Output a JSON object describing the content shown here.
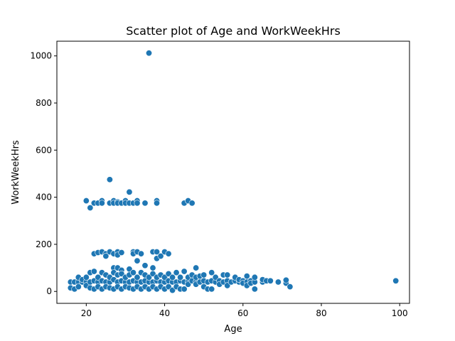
{
  "chart_data": {
    "type": "scatter",
    "title": "Scatter plot of Age and WorkWeekHrs",
    "xlabel": "Age",
    "ylabel": "WorkWeekHrs",
    "xlim": [
      12.5,
      102.5
    ],
    "ylim": [
      -50.6,
      1062.4
    ],
    "xticks": [
      20,
      40,
      60,
      80,
      100
    ],
    "yticks": [
      0,
      200,
      400,
      600,
      800,
      1000
    ],
    "grid": false,
    "marker_color": "#1f77b4",
    "marker_edge": "#ffffff",
    "points": [
      {
        "x": 36,
        "y": 1012
      },
      {
        "x": 26,
        "y": 475
      },
      {
        "x": 31,
        "y": 422
      },
      {
        "x": 20,
        "y": 385
      },
      {
        "x": 21,
        "y": 355
      },
      {
        "x": 22,
        "y": 375
      },
      {
        "x": 23,
        "y": 375
      },
      {
        "x": 24,
        "y": 385
      },
      {
        "x": 24,
        "y": 375
      },
      {
        "x": 26,
        "y": 375
      },
      {
        "x": 27,
        "y": 385
      },
      {
        "x": 27,
        "y": 375
      },
      {
        "x": 28,
        "y": 380
      },
      {
        "x": 28,
        "y": 375
      },
      {
        "x": 29,
        "y": 375
      },
      {
        "x": 30,
        "y": 385
      },
      {
        "x": 30,
        "y": 375
      },
      {
        "x": 31,
        "y": 375
      },
      {
        "x": 32,
        "y": 375
      },
      {
        "x": 33,
        "y": 385
      },
      {
        "x": 33,
        "y": 375
      },
      {
        "x": 35,
        "y": 375
      },
      {
        "x": 38,
        "y": 385
      },
      {
        "x": 38,
        "y": 375
      },
      {
        "x": 45,
        "y": 375
      },
      {
        "x": 46,
        "y": 385
      },
      {
        "x": 47,
        "y": 375
      },
      {
        "x": 22,
        "y": 160
      },
      {
        "x": 23,
        "y": 165
      },
      {
        "x": 24,
        "y": 168
      },
      {
        "x": 25,
        "y": 160
      },
      {
        "x": 25,
        "y": 150
      },
      {
        "x": 26,
        "y": 168
      },
      {
        "x": 27,
        "y": 160
      },
      {
        "x": 28,
        "y": 168
      },
      {
        "x": 28,
        "y": 155
      },
      {
        "x": 29,
        "y": 165
      },
      {
        "x": 32,
        "y": 168
      },
      {
        "x": 32,
        "y": 160
      },
      {
        "x": 33,
        "y": 168
      },
      {
        "x": 33,
        "y": 130
      },
      {
        "x": 34,
        "y": 160
      },
      {
        "x": 37,
        "y": 168
      },
      {
        "x": 38,
        "y": 168
      },
      {
        "x": 38,
        "y": 140
      },
      {
        "x": 39,
        "y": 150
      },
      {
        "x": 40,
        "y": 168
      },
      {
        "x": 41,
        "y": 160
      },
      {
        "x": 27,
        "y": 100
      },
      {
        "x": 28,
        "y": 100
      },
      {
        "x": 29,
        "y": 90
      },
      {
        "x": 31,
        "y": 95
      },
      {
        "x": 35,
        "y": 110
      },
      {
        "x": 37,
        "y": 100
      },
      {
        "x": 48,
        "y": 100
      },
      {
        "x": 16,
        "y": 40
      },
      {
        "x": 16,
        "y": 15
      },
      {
        "x": 17,
        "y": 40
      },
      {
        "x": 17,
        "y": 10
      },
      {
        "x": 18,
        "y": 40
      },
      {
        "x": 18,
        "y": 20
      },
      {
        "x": 18,
        "y": 60
      },
      {
        "x": 19,
        "y": 40
      },
      {
        "x": 19,
        "y": 50
      },
      {
        "x": 20,
        "y": 40
      },
      {
        "x": 20,
        "y": 60
      },
      {
        "x": 20,
        "y": 25
      },
      {
        "x": 21,
        "y": 40
      },
      {
        "x": 21,
        "y": 80
      },
      {
        "x": 21,
        "y": 15
      },
      {
        "x": 22,
        "y": 45
      },
      {
        "x": 22,
        "y": 85
      },
      {
        "x": 22,
        "y": 10
      },
      {
        "x": 23,
        "y": 40
      },
      {
        "x": 23,
        "y": 60
      },
      {
        "x": 23,
        "y": 20
      },
      {
        "x": 24,
        "y": 45
      },
      {
        "x": 24,
        "y": 80
      },
      {
        "x": 24,
        "y": 10
      },
      {
        "x": 25,
        "y": 40
      },
      {
        "x": 25,
        "y": 70
      },
      {
        "x": 25,
        "y": 20
      },
      {
        "x": 26,
        "y": 40
      },
      {
        "x": 26,
        "y": 60
      },
      {
        "x": 26,
        "y": 15
      },
      {
        "x": 27,
        "y": 50
      },
      {
        "x": 27,
        "y": 80
      },
      {
        "x": 27,
        "y": 10
      },
      {
        "x": 28,
        "y": 40
      },
      {
        "x": 28,
        "y": 70
      },
      {
        "x": 28,
        "y": 20
      },
      {
        "x": 29,
        "y": 45
      },
      {
        "x": 29,
        "y": 75
      },
      {
        "x": 29,
        "y": 10
      },
      {
        "x": 30,
        "y": 40
      },
      {
        "x": 30,
        "y": 60
      },
      {
        "x": 30,
        "y": 20
      },
      {
        "x": 31,
        "y": 40
      },
      {
        "x": 31,
        "y": 70
      },
      {
        "x": 31,
        "y": 15
      },
      {
        "x": 32,
        "y": 45
      },
      {
        "x": 32,
        "y": 80
      },
      {
        "x": 32,
        "y": 10
      },
      {
        "x": 33,
        "y": 40
      },
      {
        "x": 33,
        "y": 60
      },
      {
        "x": 33,
        "y": 20
      },
      {
        "x": 34,
        "y": 40
      },
      {
        "x": 34,
        "y": 80
      },
      {
        "x": 34,
        "y": 10
      },
      {
        "x": 35,
        "y": 45
      },
      {
        "x": 35,
        "y": 70
      },
      {
        "x": 35,
        "y": 20
      },
      {
        "x": 36,
        "y": 40
      },
      {
        "x": 36,
        "y": 60
      },
      {
        "x": 36,
        "y": 10
      },
      {
        "x": 37,
        "y": 40
      },
      {
        "x": 37,
        "y": 75
      },
      {
        "x": 37,
        "y": 20
      },
      {
        "x": 38,
        "y": 45
      },
      {
        "x": 38,
        "y": 60
      },
      {
        "x": 38,
        "y": 10
      },
      {
        "x": 39,
        "y": 40
      },
      {
        "x": 39,
        "y": 70
      },
      {
        "x": 39,
        "y": 20
      },
      {
        "x": 40,
        "y": 40
      },
      {
        "x": 40,
        "y": 60
      },
      {
        "x": 40,
        "y": 10
      },
      {
        "x": 41,
        "y": 45
      },
      {
        "x": 41,
        "y": 75
      },
      {
        "x": 41,
        "y": 20
      },
      {
        "x": 42,
        "y": 40
      },
      {
        "x": 42,
        "y": 60
      },
      {
        "x": 42,
        "y": 5
      },
      {
        "x": 43,
        "y": 40
      },
      {
        "x": 43,
        "y": 80
      },
      {
        "x": 43,
        "y": 20
      },
      {
        "x": 44,
        "y": 45
      },
      {
        "x": 44,
        "y": 60
      },
      {
        "x": 44,
        "y": 10
      },
      {
        "x": 45,
        "y": 40
      },
      {
        "x": 45,
        "y": 85
      },
      {
        "x": 45,
        "y": 10
      },
      {
        "x": 46,
        "y": 40
      },
      {
        "x": 46,
        "y": 60
      },
      {
        "x": 46,
        "y": 30
      },
      {
        "x": 47,
        "y": 45
      },
      {
        "x": 47,
        "y": 70
      },
      {
        "x": 48,
        "y": 40
      },
      {
        "x": 48,
        "y": 60
      },
      {
        "x": 48,
        "y": 30
      },
      {
        "x": 49,
        "y": 40
      },
      {
        "x": 49,
        "y": 65
      },
      {
        "x": 50,
        "y": 45
      },
      {
        "x": 50,
        "y": 70
      },
      {
        "x": 50,
        "y": 20
      },
      {
        "x": 51,
        "y": 40
      },
      {
        "x": 51,
        "y": 10
      },
      {
        "x": 52,
        "y": 45
      },
      {
        "x": 52,
        "y": 80
      },
      {
        "x": 52,
        "y": 10
      },
      {
        "x": 53,
        "y": 40
      },
      {
        "x": 53,
        "y": 60
      },
      {
        "x": 54,
        "y": 45
      },
      {
        "x": 54,
        "y": 30
      },
      {
        "x": 55,
        "y": 40
      },
      {
        "x": 55,
        "y": 70
      },
      {
        "x": 56,
        "y": 45
      },
      {
        "x": 56,
        "y": 70
      },
      {
        "x": 56,
        "y": 25
      },
      {
        "x": 57,
        "y": 40
      },
      {
        "x": 58,
        "y": 45
      },
      {
        "x": 58,
        "y": 60
      },
      {
        "x": 59,
        "y": 40
      },
      {
        "x": 59,
        "y": 50
      },
      {
        "x": 60,
        "y": 45
      },
      {
        "x": 60,
        "y": 35
      },
      {
        "x": 61,
        "y": 40
      },
      {
        "x": 61,
        "y": 65
      },
      {
        "x": 61,
        "y": 25
      },
      {
        "x": 62,
        "y": 45
      },
      {
        "x": 62,
        "y": 35
      },
      {
        "x": 63,
        "y": 40
      },
      {
        "x": 63,
        "y": 60
      },
      {
        "x": 63,
        "y": 10
      },
      {
        "x": 65,
        "y": 40
      },
      {
        "x": 65,
        "y": 50
      },
      {
        "x": 66,
        "y": 45
      },
      {
        "x": 67,
        "y": 45
      },
      {
        "x": 69,
        "y": 40
      },
      {
        "x": 71,
        "y": 35
      },
      {
        "x": 71,
        "y": 48
      },
      {
        "x": 72,
        "y": 20
      },
      {
        "x": 99,
        "y": 45
      }
    ]
  }
}
